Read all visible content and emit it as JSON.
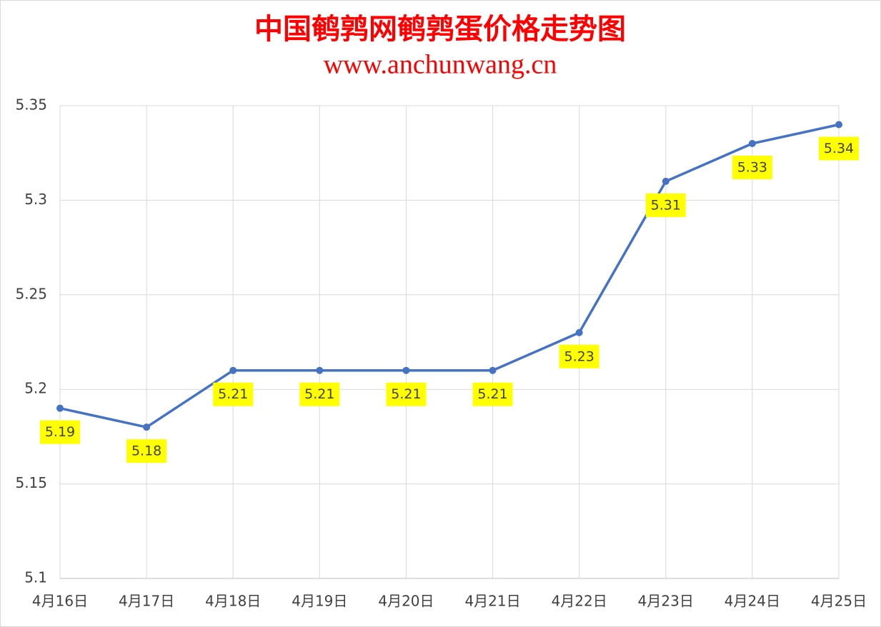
{
  "chart_data": {
    "type": "line",
    "title": "中国鹌鹑网鹌鹑蛋价格走势图",
    "subtitle": "www.anchunwang.cn",
    "categories": [
      "4月16日",
      "4月17日",
      "4月18日",
      "4月19日",
      "4月20日",
      "4月21日",
      "4月22日",
      "4月23日",
      "4月24日",
      "4月25日"
    ],
    "series": [
      {
        "color": "#4472c4",
        "values": [
          5.19,
          5.18,
          5.21,
          5.21,
          5.21,
          5.21,
          5.23,
          5.31,
          5.33,
          5.34
        ]
      }
    ],
    "ylim": [
      5.1,
      5.35
    ],
    "yticks": [
      5.35,
      5.3,
      5.25,
      5.2,
      5.15,
      5.1
    ],
    "grid": true,
    "label_color": "#ffff00"
  }
}
